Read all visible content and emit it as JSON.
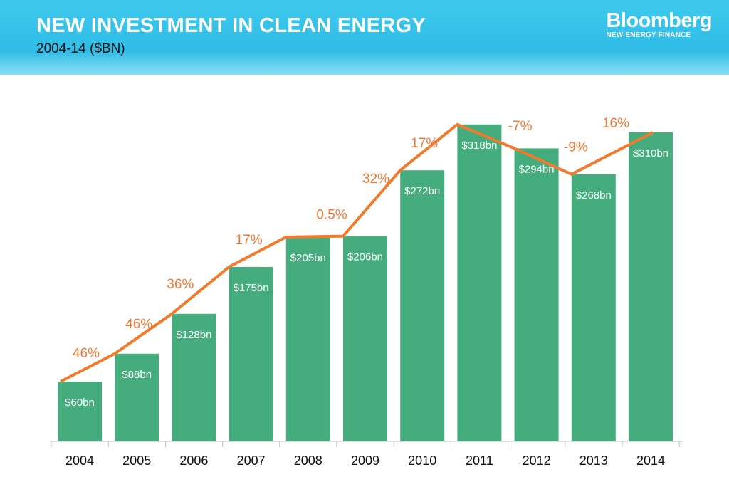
{
  "header": {
    "title": "NEW INVESTMENT IN CLEAN ENERGY",
    "subtitle": "2004-14 ($BN)",
    "brand_name": "Bloomberg",
    "brand_sub": "NEW ENERGY FINANCE"
  },
  "colors": {
    "bar": "#45ad7d",
    "line": "#f07a2e",
    "header": "#2fbce6"
  },
  "chart_data": {
    "type": "bar",
    "title": "NEW INVESTMENT IN CLEAN ENERGY",
    "subtitle": "2004-14 ($BN)",
    "xlabel": "",
    "ylabel": "",
    "ylim": [
      0,
      330
    ],
    "grid": false,
    "categories": [
      "2004",
      "2005",
      "2006",
      "2007",
      "2008",
      "2009",
      "2010",
      "2011",
      "2012",
      "2013",
      "2014"
    ],
    "values": [
      60,
      88,
      128,
      175,
      205,
      206,
      272,
      318,
      294,
      268,
      310
    ],
    "value_labels": [
      "$60bn",
      "$88bn",
      "$128bn",
      "$175bn",
      "$205bn",
      "$206bn",
      "$272bn",
      "$318bn",
      "$294bn",
      "$268bn",
      "$310bn"
    ],
    "growth_labels": [
      "46%",
      "46%",
      "36%",
      "17%",
      "0.5%",
      "32%",
      "17%",
      "-7%",
      "-9%",
      "16%"
    ],
    "line_overlay": "growth trend line connecting bar tops"
  }
}
